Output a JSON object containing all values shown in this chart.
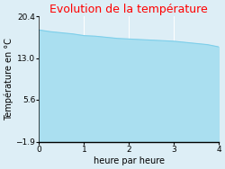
{
  "title": "Evolution de la température",
  "xlabel": "heure par heure",
  "ylabel": "Température en °C",
  "x_data": [
    0,
    0.25,
    0.5,
    0.75,
    1.0,
    1.25,
    1.5,
    1.75,
    2.0,
    2.25,
    2.5,
    2.75,
    3.0,
    3.25,
    3.5,
    3.75,
    4.0
  ],
  "y_data": [
    18.0,
    17.7,
    17.5,
    17.3,
    17.0,
    16.9,
    16.7,
    16.5,
    16.4,
    16.3,
    16.2,
    16.1,
    16.0,
    15.8,
    15.6,
    15.4,
    15.0
  ],
  "ylim": [
    -1.9,
    20.4
  ],
  "xlim": [
    0,
    4
  ],
  "yticks": [
    -1.9,
    5.6,
    13.0,
    20.4
  ],
  "xticks": [
    0,
    1,
    2,
    3,
    4
  ],
  "fill_color": "#aadff0",
  "line_color": "#7ecfea",
  "background_color": "#ddeef6",
  "title_color": "#ff0000",
  "title_fontsize": 9,
  "label_fontsize": 7,
  "tick_fontsize": 6.5
}
